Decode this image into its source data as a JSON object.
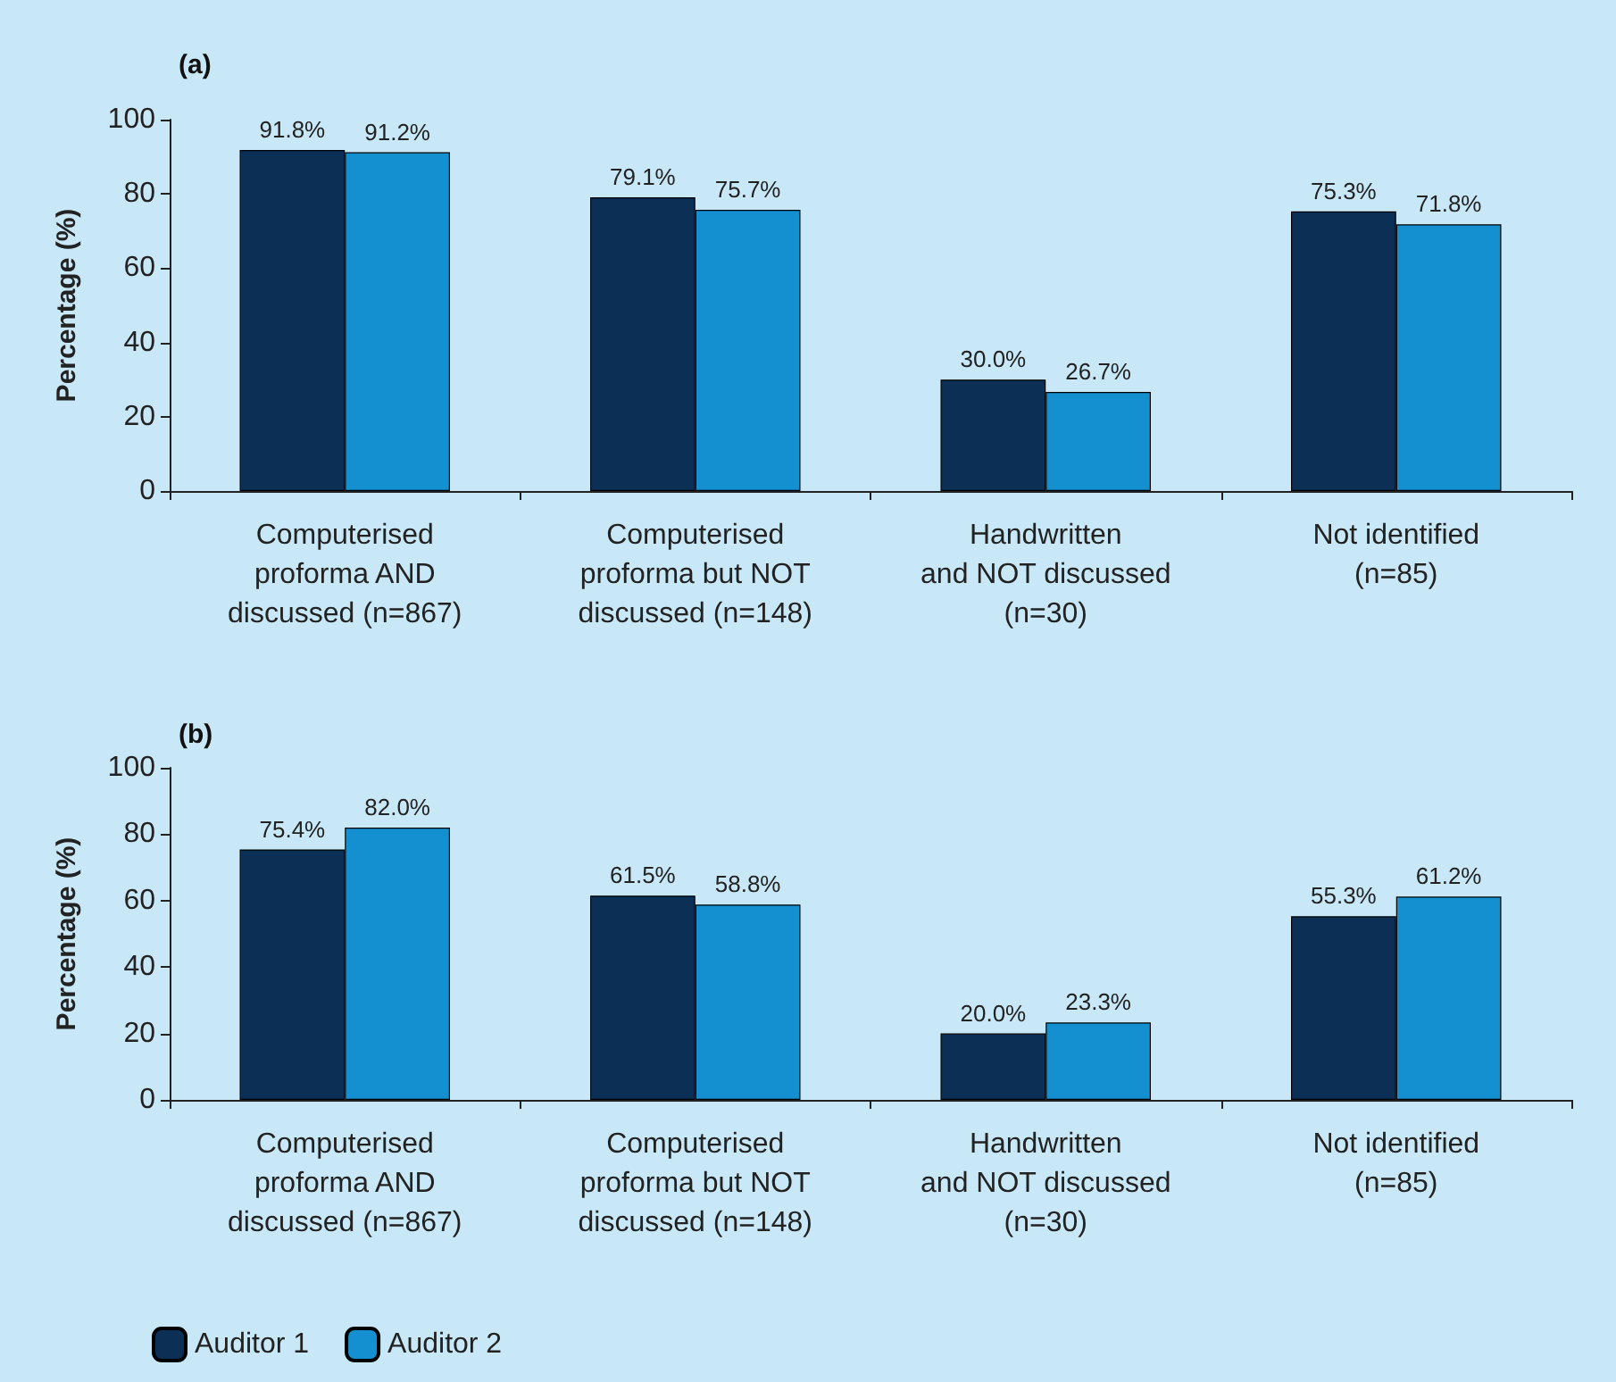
{
  "chart_data": [
    {
      "type": "bar",
      "title": "(a)",
      "ylabel": "Percentage (%)",
      "categories": [
        "Computerised\nproforma AND\ndiscussed (n=867)",
        "Computerised\nproforma but NOT\ndiscussed (n=148)",
        "Handwritten\nand NOT discussed\n(n=30)",
        "Not identified\n(n=85)"
      ],
      "series": [
        {
          "color": "#0b2f55",
          "values": [
            91.8,
            79.1,
            30.0,
            75.3
          ],
          "value_labels": [
            "91.8%",
            "79.1%",
            "30.0%",
            "75.3%"
          ]
        },
        {
          "color": "#1490d0",
          "values": [
            91.2,
            75.7,
            26.7,
            71.8
          ],
          "value_labels": [
            "91.2%",
            "75.7%",
            "26.7%",
            "71.8%"
          ]
        }
      ],
      "ylim": [
        0,
        100
      ],
      "yticks": [
        0,
        20,
        40,
        60,
        80,
        100
      ],
      "grid": false,
      "legend": false
    },
    {
      "type": "bar",
      "title": "(b)",
      "ylabel": "Percentage (%)",
      "categories": [
        "Computerised\nproforma AND\ndiscussed (n=867)",
        "Computerised\nproforma but NOT\ndiscussed (n=148)",
        "Handwritten\nand NOT discussed\n(n=30)",
        "Not identified\n(n=85)"
      ],
      "series": [
        {
          "name": "Auditor 1",
          "color": "#0b2f55",
          "values": [
            75.4,
            61.5,
            20.0,
            55.3
          ],
          "value_labels": [
            "75.4%",
            "61.5%",
            "20.0%",
            "55.3%"
          ]
        },
        {
          "name": "Auditor 2",
          "color": "#1490d0",
          "values": [
            82.0,
            58.8,
            23.3,
            61.2
          ],
          "value_labels": [
            "82.0%",
            "58.8%",
            "23.3%",
            "61.2%"
          ]
        }
      ],
      "ylim": [
        0,
        100
      ],
      "yticks": [
        0,
        20,
        40,
        60,
        80,
        100
      ],
      "grid": false,
      "legend": "bottom left"
    }
  ]
}
